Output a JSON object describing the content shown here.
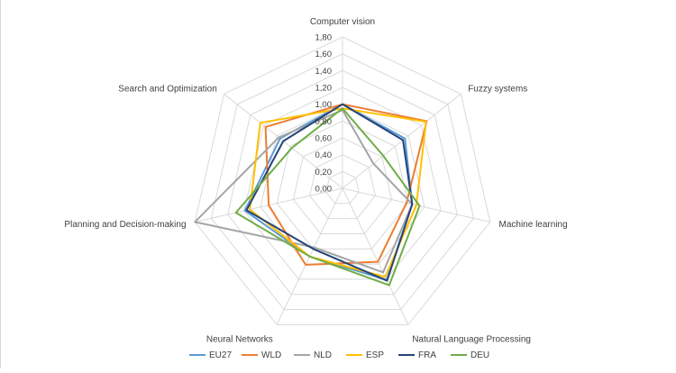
{
  "chart_data": {
    "type": "radar",
    "title": "",
    "axes": [
      "Computer vision",
      "Fuzzy systems",
      "Machine learning",
      "Natural Language Processing",
      "Neural Networks",
      "Planning and Decision-making",
      "Search and Optimization"
    ],
    "tick_labels": [
      "0,00",
      "0,20",
      "0,40",
      "0,60",
      "0,80",
      "1,00",
      "1,20",
      "1,40",
      "1,60",
      "1,80"
    ],
    "ylim": [
      0,
      1.8
    ],
    "grid": true,
    "legend_position": "bottom",
    "series": [
      {
        "name": "EU27",
        "color": "#5b9bd5",
        "values": [
          1.0,
          0.95,
          0.85,
          1.21,
          0.9,
          1.19,
          0.95
        ]
      },
      {
        "name": "WLD",
        "color": "#ed7d31",
        "values": [
          1.0,
          1.28,
          0.78,
          0.97,
          1.01,
          0.9,
          1.17
        ]
      },
      {
        "name": "NLD",
        "color": "#a5a5a5",
        "values": [
          0.93,
          0.47,
          0.85,
          1.11,
          0.78,
          1.8,
          0.97
        ]
      },
      {
        "name": "ESP",
        "color": "#ffc000",
        "values": [
          0.95,
          1.27,
          0.9,
          1.17,
          0.9,
          1.13,
          1.25
        ]
      },
      {
        "name": "FRA",
        "color": "#264478",
        "values": [
          1.0,
          0.92,
          0.85,
          1.22,
          0.8,
          1.17,
          0.9
        ]
      },
      {
        "name": "DEU",
        "color": "#70ad47",
        "values": [
          0.95,
          0.62,
          0.94,
          1.28,
          0.9,
          1.3,
          0.77
        ]
      }
    ]
  }
}
